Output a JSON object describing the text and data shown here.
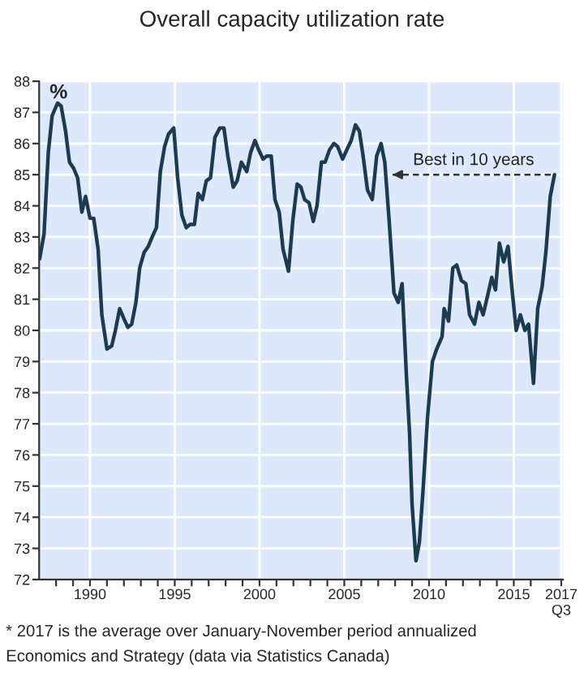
{
  "chart_data": {
    "type": "line",
    "title": "Overall capacity utilization rate",
    "ylabel": "%",
    "x": [
      1987.03,
      1987.29,
      1987.54,
      1987.77,
      1988.09,
      1988.3,
      1988.56,
      1988.79,
      1989.04,
      1989.27,
      1989.52,
      1989.74,
      1990.0,
      1990.22,
      1990.48,
      1990.7,
      1991.0,
      1991.28,
      1991.5,
      1991.75,
      1991.98,
      1992.23,
      1992.46,
      1992.71,
      1992.93,
      1993.19,
      1993.44,
      1993.67,
      1993.92,
      1994.15,
      1994.4,
      1994.63,
      1994.94,
      1995.17,
      1995.42,
      1995.68,
      1995.9,
      1996.16,
      1996.38,
      1996.63,
      1996.86,
      1997.11,
      1997.37,
      1997.66,
      1997.9,
      1998.13,
      1998.45,
      1998.68,
      1998.93,
      1999.25,
      1999.47,
      1999.73,
      1999.95,
      2000.21,
      2000.43,
      2000.69,
      2000.91,
      2001.16,
      2001.39,
      2001.71,
      2001.96,
      2002.22,
      2002.44,
      2002.66,
      2002.92,
      2003.17,
      2003.39,
      2003.65,
      2003.87,
      2004.13,
      2004.39,
      2004.61,
      2004.9,
      2005.15,
      2005.41,
      2005.66,
      2005.89,
      2006.11,
      2006.37,
      2006.65,
      2006.91,
      2007.17,
      2007.39,
      2007.65,
      2007.93,
      2008.18,
      2008.41,
      2008.66,
      2008.85,
      2009.0,
      2009.23,
      2009.43,
      2009.65,
      2009.91,
      2010.2,
      2010.45,
      2010.77,
      2010.89,
      2011.15,
      2011.4,
      2011.63,
      2011.91,
      2012.17,
      2012.39,
      2012.68,
      2012.94,
      2013.19,
      2013.45,
      2013.7,
      2013.92,
      2014.15,
      2014.4,
      2014.66,
      2014.88,
      2015.14,
      2015.39,
      2015.65,
      2015.87,
      2016.16,
      2016.41,
      2016.67,
      2016.89,
      2017.15,
      2017.4
    ],
    "series": [
      {
        "color": "#1c3b50",
        "values": [
          82.3,
          83.1,
          85.7,
          86.9,
          87.3,
          87.2,
          86.4,
          85.4,
          85.2,
          84.9,
          83.8,
          84.3,
          83.6,
          83.6,
          82.6,
          80.5,
          79.4,
          79.5,
          80.0,
          80.7,
          80.4,
          80.1,
          80.2,
          80.9,
          82.0,
          82.5,
          82.7,
          83.0,
          83.3,
          85.1,
          85.9,
          86.3,
          86.5,
          84.9,
          83.7,
          83.3,
          83.4,
          83.4,
          84.4,
          84.2,
          84.8,
          84.9,
          86.2,
          86.5,
          86.5,
          85.6,
          84.6,
          84.8,
          85.4,
          85.1,
          85.7,
          86.1,
          85.8,
          85.5,
          85.6,
          85.6,
          84.2,
          83.8,
          82.6,
          81.9,
          83.5,
          84.7,
          84.6,
          84.2,
          84.1,
          83.5,
          84.0,
          85.4,
          85.4,
          85.8,
          86.0,
          85.9,
          85.5,
          85.8,
          86.1,
          86.6,
          86.4,
          85.6,
          84.5,
          84.2,
          85.6,
          86.0,
          85.4,
          83.5,
          81.2,
          80.9,
          81.5,
          78.6,
          76.7,
          74.4,
          72.6,
          73.2,
          74.9,
          77.2,
          79.0,
          79.4,
          79.8,
          80.7,
          80.3,
          82.0,
          82.1,
          81.6,
          81.5,
          80.5,
          80.2,
          80.9,
          80.5,
          81.1,
          81.7,
          81.3,
          82.8,
          82.2,
          82.7,
          81.4,
          80.0,
          80.5,
          80.0,
          80.2,
          78.3,
          80.7,
          81.4,
          82.5,
          84.3,
          85.0
        ]
      }
    ],
    "xlim": [
      1987.0,
      2017.9
    ],
    "xticks": [
      {
        "value": 1988,
        "label": null
      },
      {
        "value": 1989,
        "label": null
      },
      1990,
      {
        "value": 1991,
        "label": null
      },
      {
        "value": 1992,
        "label": null
      },
      {
        "value": 1993,
        "label": null
      },
      {
        "value": 1994,
        "label": null
      },
      1995,
      {
        "value": 1996,
        "label": null
      },
      {
        "value": 1997,
        "label": null
      },
      {
        "value": 1998,
        "label": null
      },
      {
        "value": 1999,
        "label": null
      },
      2000,
      {
        "value": 2001,
        "label": null
      },
      {
        "value": 2002,
        "label": null
      },
      {
        "value": 2003,
        "label": null
      },
      {
        "value": 2004,
        "label": null
      },
      2005,
      {
        "value": 2006,
        "label": null
      },
      {
        "value": 2007,
        "label": null
      },
      {
        "value": 2008,
        "label": null
      },
      {
        "value": 2009,
        "label": null
      },
      2010,
      {
        "value": 2011,
        "label": null
      },
      {
        "value": 2012,
        "label": null
      },
      {
        "value": 2013,
        "label": null
      },
      {
        "value": 2014,
        "label": null
      },
      2015,
      {
        "value": 2016,
        "label": null
      },
      {
        "value": 2017.8,
        "label": "2017\nQ3"
      }
    ],
    "ylim": [
      72,
      88
    ],
    "yticks": [
      72,
      73,
      74,
      75,
      76,
      77,
      78,
      79,
      80,
      81,
      82,
      83,
      84,
      85,
      86,
      87,
      88
    ],
    "grid": true,
    "legend": false,
    "marker": "none",
    "line_style": "solid",
    "ref_lines": [
      {
        "axis": "y",
        "value": 85.0,
        "label": "Best in 10 years",
        "color": "#333333",
        "line_style": "dashed"
      }
    ],
    "annotations": [
      "* 2017 is the average over January-November period annualized",
      "Economics and Strategy (data via Statistics Canada)"
    ]
  }
}
